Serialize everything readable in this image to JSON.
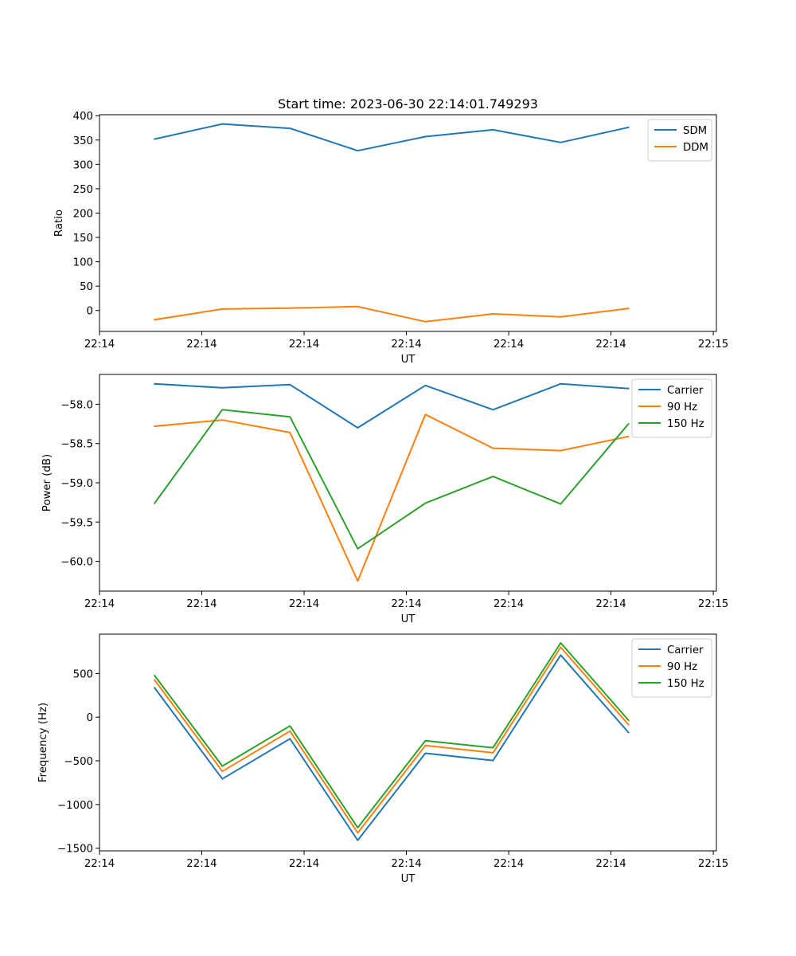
{
  "figure_title": "Start time: 2023-06-30 22:14:01.749293",
  "colors": {
    "series_1": "#1f77b4",
    "series_2": "#ff7f0e",
    "series_3": "#2ca02c"
  },
  "chart_data": [
    {
      "type": "line",
      "title": "Start time: 2023-06-30 22:14:01.749293",
      "xlabel": "UT",
      "ylabel": "Ratio",
      "x": [
        1,
        2,
        3,
        4,
        5,
        6,
        7,
        8
      ],
      "xlim": [
        0.185,
        9.3
      ],
      "x_ticks": [
        0.185,
        1.696,
        3.208,
        4.719,
        6.231,
        7.742,
        9.254
      ],
      "x_tick_labels": [
        "22:14",
        "22:14",
        "22:14",
        "22:14",
        "22:14",
        "22:14",
        "22:15"
      ],
      "ylim": [
        -43,
        402
      ],
      "y_ticks": [
        0,
        50,
        100,
        150,
        200,
        250,
        300,
        350,
        400
      ],
      "y_tick_labels": [
        "0",
        "50",
        "100",
        "150",
        "200",
        "250",
        "300",
        "350",
        "400"
      ],
      "legend_position": "top-right",
      "series": [
        {
          "name": "SDM",
          "color": "#1f77b4",
          "values": [
            352,
            383,
            374,
            328,
            357,
            371,
            345,
            376
          ]
        },
        {
          "name": "DDM",
          "color": "#ff7f0e",
          "values": [
            -19,
            3,
            5,
            8,
            -23,
            -7,
            -13,
            4
          ]
        }
      ]
    },
    {
      "type": "line",
      "xlabel": "UT",
      "ylabel": "Power (dB)",
      "x": [
        1,
        2,
        3,
        4,
        5,
        6,
        7,
        8
      ],
      "xlim": [
        0.185,
        9.3
      ],
      "x_ticks": [
        0.185,
        1.696,
        3.208,
        4.719,
        6.231,
        7.742,
        9.254
      ],
      "x_tick_labels": [
        "22:14",
        "22:14",
        "22:14",
        "22:14",
        "22:14",
        "22:14",
        "22:15"
      ],
      "ylim": [
        -60.38,
        -57.62
      ],
      "y_ticks": [
        -60.0,
        -59.5,
        -59.0,
        -58.5,
        -58.0
      ],
      "y_tick_labels": [
        "−60.0",
        "−59.5",
        "−59.0",
        "−58.5",
        "−58.0"
      ],
      "legend_position": "top-right",
      "series": [
        {
          "name": "Carrier",
          "color": "#1f77b4",
          "values": [
            -57.74,
            -57.79,
            -57.75,
            -58.3,
            -57.76,
            -58.07,
            -57.74,
            -57.8
          ]
        },
        {
          "name": "90 Hz",
          "color": "#ff7f0e",
          "values": [
            -58.28,
            -58.2,
            -58.36,
            -60.25,
            -58.13,
            -58.56,
            -58.59,
            -58.41
          ]
        },
        {
          "name": "150 Hz",
          "color": "#2ca02c",
          "values": [
            -59.26,
            -58.07,
            -58.16,
            -59.84,
            -59.26,
            -58.92,
            -59.27,
            -58.25
          ]
        }
      ]
    },
    {
      "type": "line",
      "xlabel": "UT",
      "ylabel": "Frequency (Hz)",
      "x": [
        1,
        2,
        3,
        4,
        5,
        6,
        7,
        8
      ],
      "xlim": [
        0.185,
        9.3
      ],
      "x_ticks": [
        0.185,
        1.696,
        3.208,
        4.719,
        6.231,
        7.742,
        9.254
      ],
      "x_tick_labels": [
        "22:14",
        "22:14",
        "22:14",
        "22:14",
        "22:14",
        "22:14",
        "22:15"
      ],
      "ylim": [
        -1530,
        950
      ],
      "y_ticks": [
        -1500,
        -1000,
        -500,
        0,
        500
      ],
      "y_tick_labels": [
        "−1500",
        "−1000",
        "−500",
        "0",
        "500"
      ],
      "legend_position": "top-right",
      "series": [
        {
          "name": "Carrier",
          "color": "#1f77b4",
          "values": [
            335,
            -707,
            -247,
            -1410,
            -413,
            -496,
            710,
            -175
          ]
        },
        {
          "name": "90 Hz",
          "color": "#ff7f0e",
          "values": [
            425,
            -620,
            -160,
            -1325,
            -325,
            -408,
            800,
            -85
          ]
        },
        {
          "name": "150 Hz",
          "color": "#2ca02c",
          "values": [
            475,
            -560,
            -100,
            -1265,
            -270,
            -350,
            850,
            -35
          ]
        }
      ]
    }
  ]
}
